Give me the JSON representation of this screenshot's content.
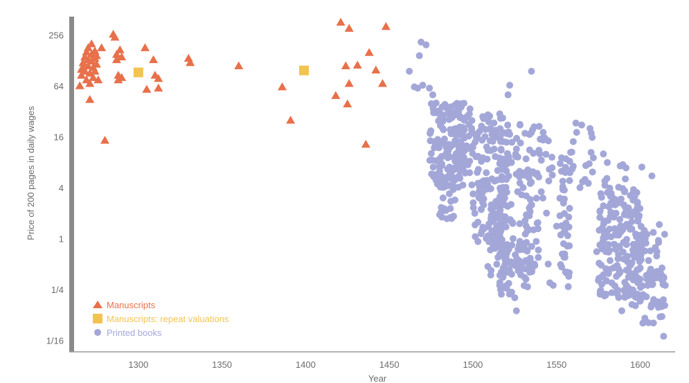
{
  "chart_data": {
    "type": "scatter",
    "title": "",
    "xlabel": "Year",
    "ylabel": "Price of 200 pages in daily wages",
    "xlim": [
      1262,
      1618
    ],
    "ylim": [
      0.0476,
      420
    ],
    "y_scale": "log",
    "x_ticks": [
      1300,
      1350,
      1400,
      1450,
      1500,
      1550,
      1600
    ],
    "y_ticks": [
      {
        "value": 256,
        "label": "256"
      },
      {
        "value": 64,
        "label": "64"
      },
      {
        "value": 16,
        "label": "16"
      },
      {
        "value": 4,
        "label": "4"
      },
      {
        "value": 1,
        "label": "1"
      },
      {
        "value": 0.25,
        "label": "1/4"
      },
      {
        "value": 0.0625,
        "label": "1/16"
      }
    ],
    "grid": false,
    "legend_position": "bottom-left",
    "colors": {
      "manuscripts": "#e8704a",
      "repeat": "#f2c44f",
      "printed": "#a3a7d8",
      "axis": "#8a8a8a"
    },
    "series": [
      {
        "name": "Manuscripts",
        "marker": "triangle",
        "color": "#e8704a",
        "points": [
          [
            1265,
            64
          ],
          [
            1266,
            85
          ],
          [
            1266,
            100
          ],
          [
            1267,
            120
          ],
          [
            1267,
            105
          ],
          [
            1268,
            140
          ],
          [
            1268,
            95
          ],
          [
            1269,
            75
          ],
          [
            1269,
            160
          ],
          [
            1270,
            130
          ],
          [
            1270,
            110
          ],
          [
            1270,
            180
          ],
          [
            1271,
            90
          ],
          [
            1271,
            68
          ],
          [
            1272,
            150
          ],
          [
            1272,
            125
          ],
          [
            1272,
            200
          ],
          [
            1273,
            105
          ],
          [
            1273,
            80
          ],
          [
            1274,
            135
          ],
          [
            1274,
            165
          ],
          [
            1274,
            95
          ],
          [
            1275,
            115
          ],
          [
            1275,
            145
          ],
          [
            1276,
            75
          ],
          [
            1271,
            44
          ],
          [
            1278,
            180
          ],
          [
            1280,
            14.5
          ],
          [
            1285,
            260
          ],
          [
            1286,
            240
          ],
          [
            1287,
            150
          ],
          [
            1287,
            130
          ],
          [
            1288,
            85
          ],
          [
            1288,
            75
          ],
          [
            1289,
            170
          ],
          [
            1290,
            140
          ],
          [
            1290,
            80
          ],
          [
            1304,
            180
          ],
          [
            1305,
            58
          ],
          [
            1309,
            130
          ],
          [
            1310,
            85
          ],
          [
            1312,
            78
          ],
          [
            1312,
            60
          ],
          [
            1330,
            135
          ],
          [
            1331,
            120
          ],
          [
            1360,
            110
          ],
          [
            1386,
            62
          ],
          [
            1391,
            25
          ],
          [
            1418,
            49
          ],
          [
            1421,
            360
          ],
          [
            1424,
            110
          ],
          [
            1425,
            39
          ],
          [
            1426,
            305
          ],
          [
            1426,
            68
          ],
          [
            1431,
            112
          ],
          [
            1436,
            13
          ],
          [
            1438,
            158
          ],
          [
            1442,
            98
          ],
          [
            1446,
            68
          ],
          [
            1448,
            320
          ]
        ]
      },
      {
        "name": "Manuscripts: repeat valuations",
        "marker": "square",
        "color": "#f2c44f",
        "points": [
          [
            1300,
            92
          ],
          [
            1399,
            97
          ]
        ]
      },
      {
        "name": "Printed books",
        "marker": "circle",
        "color": "#a3a7d8",
        "points": [
          [
            1462,
            95
          ],
          [
            1465,
            62
          ],
          [
            1467,
            60
          ],
          [
            1468,
            145
          ],
          [
            1469,
            210
          ],
          [
            1470,
            65
          ],
          [
            1472,
            195
          ],
          [
            1474,
            60
          ],
          [
            1476,
            50
          ],
          [
            1478,
            40
          ],
          [
            1480,
            30
          ],
          [
            1482,
            20
          ],
          [
            1483,
            15
          ],
          [
            1484,
            12
          ],
          [
            1485,
            9
          ],
          [
            1486,
            7
          ],
          [
            1487,
            6
          ],
          [
            1488,
            5
          ],
          [
            1489,
            4
          ],
          [
            1490,
            10
          ],
          [
            1492,
            14
          ],
          [
            1494,
            18
          ],
          [
            1495,
            25
          ],
          [
            1496,
            8
          ],
          [
            1498,
            6
          ],
          [
            1500,
            12
          ],
          [
            1502,
            16
          ],
          [
            1503,
            4.5
          ],
          [
            1504,
            3
          ],
          [
            1505,
            2.2
          ],
          [
            1506,
            9
          ],
          [
            1508,
            6
          ],
          [
            1510,
            28
          ],
          [
            1511,
            2.5
          ],
          [
            1512,
            1.6
          ],
          [
            1513,
            1.2
          ],
          [
            1514,
            0.8
          ],
          [
            1515,
            0.6
          ],
          [
            1516,
            0.28
          ],
          [
            1517,
            0.22
          ],
          [
            1518,
            0.35
          ],
          [
            1519,
            3
          ],
          [
            1520,
            5
          ],
          [
            1521,
            50
          ],
          [
            1522,
            65
          ],
          [
            1523,
            8
          ],
          [
            1524,
            1
          ],
          [
            1525,
            0.2
          ],
          [
            1526,
            0.14
          ],
          [
            1527,
            0.75
          ],
          [
            1528,
            1.5
          ],
          [
            1530,
            4
          ],
          [
            1532,
            0.9
          ],
          [
            1533,
            0.55
          ],
          [
            1534,
            0.4
          ],
          [
            1535,
            95
          ],
          [
            1536,
            6
          ],
          [
            1537,
            0.48
          ],
          [
            1538,
            3
          ],
          [
            1540,
            10
          ],
          [
            1542,
            18
          ],
          [
            1544,
            2
          ],
          [
            1545,
            0.5
          ],
          [
            1546,
            0.3
          ],
          [
            1548,
            0.28
          ],
          [
            1550,
            1.4
          ],
          [
            1552,
            3
          ],
          [
            1553,
            9
          ],
          [
            1555,
            0.6
          ],
          [
            1556,
            0.4
          ],
          [
            1557,
            0.27
          ],
          [
            1558,
            6
          ],
          [
            1560,
            14
          ],
          [
            1562,
            18
          ],
          [
            1564,
            4
          ],
          [
            1565,
            22
          ],
          [
            1567,
            5
          ],
          [
            1569,
            4.5
          ],
          [
            1570,
            20
          ],
          [
            1572,
            9
          ],
          [
            1574,
            0.7
          ],
          [
            1575,
            0.32
          ],
          [
            1576,
            0.22
          ],
          [
            1578,
            10
          ],
          [
            1580,
            1.2
          ],
          [
            1581,
            0.85
          ],
          [
            1582,
            0.55
          ],
          [
            1583,
            0.3
          ],
          [
            1584,
            0.45
          ],
          [
            1585,
            2.5
          ],
          [
            1587,
            0.65
          ],
          [
            1588,
            0.4
          ],
          [
            1589,
            0.14
          ],
          [
            1590,
            0.9
          ],
          [
            1591,
            2
          ],
          [
            1593,
            0.35
          ],
          [
            1594,
            0.25
          ],
          [
            1595,
            1.3
          ],
          [
            1597,
            0.6
          ],
          [
            1598,
            3.5
          ],
          [
            1600,
            0.45
          ],
          [
            1601,
            0.2
          ],
          [
            1603,
            1
          ],
          [
            1605,
            0.55
          ],
          [
            1606,
            0.32
          ],
          [
            1608,
            0.18
          ],
          [
            1610,
            0.7
          ],
          [
            1612,
            0.4
          ],
          [
            1613,
            0.12
          ],
          [
            1614,
            0.07
          ],
          [
            1615,
            0.28
          ],
          [
            1601,
            7
          ],
          [
            1607,
            5.5
          ],
          [
            1611,
            0.9
          ]
        ],
        "clusters": [
          {
            "x_range": [
              1474,
              1500
            ],
            "y_range": [
              4,
              40
            ],
            "count": 170
          },
          {
            "x_range": [
              1480,
              1490
            ],
            "y_range": [
              1.6,
              6
            ],
            "count": 24
          },
          {
            "x_range": [
              1500,
              1518
            ],
            "y_range": [
              0.9,
              30
            ],
            "count": 110
          },
          {
            "x_range": [
              1508,
              1520
            ],
            "y_range": [
              0.35,
              3
            ],
            "count": 40
          },
          {
            "x_range": [
              1516,
              1524
            ],
            "y_range": [
              0.22,
              30
            ],
            "count": 70
          },
          {
            "x_range": [
              1525,
              1540
            ],
            "y_range": [
              0.4,
              25
            ],
            "count": 70
          },
          {
            "x_range": [
              1526,
              1536
            ],
            "y_range": [
              0.25,
              1
            ],
            "count": 25
          },
          {
            "x_range": [
              1540,
              1548
            ],
            "y_range": [
              3,
              20
            ],
            "count": 14
          },
          {
            "x_range": [
              1552,
              1558
            ],
            "y_range": [
              0.3,
              10
            ],
            "count": 40
          },
          {
            "x_range": [
              1558,
              1572
            ],
            "y_range": [
              4,
              25
            ],
            "count": 12
          },
          {
            "x_range": [
              1575,
              1600
            ],
            "y_range": [
              0.2,
              4
            ],
            "count": 150
          },
          {
            "x_range": [
              1595,
              1615
            ],
            "y_range": [
              0.16,
              1.5
            ],
            "count": 70
          },
          {
            "x_range": [
              1578,
              1592
            ],
            "y_range": [
              1,
              8
            ],
            "count": 26
          },
          {
            "x_range": [
              1600,
              1615
            ],
            "y_range": [
              0.1,
              0.35
            ],
            "count": 14
          }
        ]
      }
    ]
  }
}
